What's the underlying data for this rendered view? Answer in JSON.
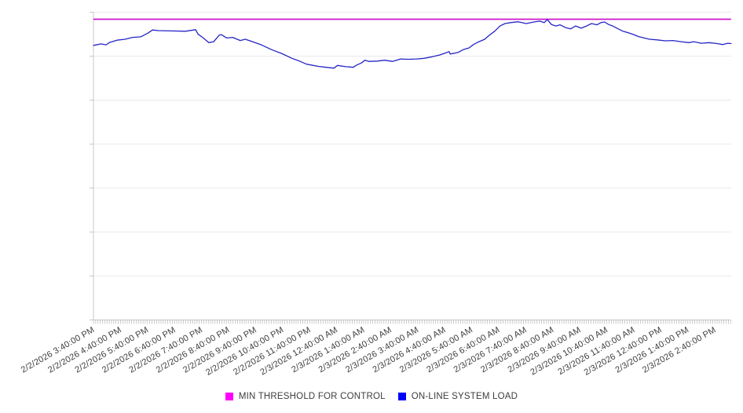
{
  "chart_data": {
    "type": "line",
    "title": "",
    "x_axis": {
      "tick_labels": [
        "2/2/2026 3:40:00 PM",
        "2/2/2026 4:40:00 PM",
        "2/2/2026 5:40:00 PM",
        "2/2/2026 6:40:00 PM",
        "2/2/2026 7:40:00 PM",
        "2/2/2026 8:40:00 PM",
        "2/2/2026 9:40:00 PM",
        "2/2/2026 10:40:00 PM",
        "2/2/2026 11:40:00 PM",
        "2/3/2026 12:40:00 AM",
        "2/3/2026 1:40:00 AM",
        "2/3/2026 2:40:00 AM",
        "2/3/2026 3:40:00 AM",
        "2/3/2026 4:40:00 AM",
        "2/3/2026 5:40:00 AM",
        "2/3/2026 6:40:00 AM",
        "2/3/2026 7:40:00 AM",
        "2/3/2026 8:40:00 AM",
        "2/3/2026 9:40:00 AM",
        "2/3/2026 10:40:00 AM",
        "2/3/2026 11:40:00 AM",
        "2/3/2026 12:40:00 PM",
        "2/3/2026 1:40:00 PM",
        "2/3/2026 2:40:00 PM"
      ],
      "label_interval_minutes": 60,
      "minor_ticks_per_hour": 12,
      "range_minutes": [
        0,
        1416
      ]
    },
    "y_axis": {
      "tick_labels": [],
      "normalized_range": [
        0,
        100
      ],
      "gridlines": 7,
      "note": "y axis rendered without tick labels; series values normalized 0-100 of plot height"
    },
    "legend_position": "bottom-center",
    "colors": {
      "gridline": "#EAEAEA",
      "axis": "#C8C8C8",
      "minor_tick": "#ABABAB",
      "label_text": "#3D3D3D",
      "background": "#FFFFFF"
    },
    "series": [
      {
        "name": "MIN THRESHOLD FOR CONTROL",
        "role": "threshold",
        "legend_color": "#FF00FF",
        "line_color": "#CC16CC",
        "value": 97.7
      },
      {
        "name": "ON-LINE SYSTEM LOAD",
        "role": "data",
        "legend_color": "#0000FF",
        "line_color": "#2525C4",
        "points": [
          [
            0,
            89.2
          ],
          [
            17,
            89.7
          ],
          [
            28,
            89.4
          ],
          [
            35,
            90.1
          ],
          [
            52,
            90.9
          ],
          [
            70,
            91.2
          ],
          [
            87,
            91.8
          ],
          [
            105,
            92.0
          ],
          [
            122,
            93.3
          ],
          [
            131,
            94.2
          ],
          [
            145,
            94.0
          ],
          [
            174,
            93.9
          ],
          [
            204,
            93.8
          ],
          [
            227,
            94.3
          ],
          [
            232,
            92.9
          ],
          [
            244,
            91.6
          ],
          [
            256,
            90.1
          ],
          [
            267,
            90.4
          ],
          [
            279,
            92.5
          ],
          [
            284,
            92.7
          ],
          [
            296,
            91.6
          ],
          [
            309,
            91.8
          ],
          [
            326,
            90.8
          ],
          [
            337,
            91.2
          ],
          [
            349,
            90.6
          ],
          [
            371,
            89.5
          ],
          [
            396,
            87.8
          ],
          [
            419,
            86.5
          ],
          [
            441,
            85.0
          ],
          [
            459,
            84.0
          ],
          [
            473,
            83.1
          ],
          [
            499,
            82.4
          ],
          [
            516,
            82.1
          ],
          [
            534,
            81.8
          ],
          [
            542,
            82.7
          ],
          [
            560,
            82.3
          ],
          [
            577,
            82.1
          ],
          [
            583,
            82.7
          ],
          [
            595,
            83.5
          ],
          [
            603,
            84.4
          ],
          [
            612,
            84.0
          ],
          [
            630,
            84.1
          ],
          [
            647,
            84.4
          ],
          [
            664,
            84.0
          ],
          [
            682,
            84.8
          ],
          [
            699,
            84.7
          ],
          [
            717,
            84.8
          ],
          [
            734,
            85.0
          ],
          [
            752,
            85.5
          ],
          [
            769,
            86.1
          ],
          [
            781,
            86.7
          ],
          [
            790,
            87.2
          ],
          [
            792,
            86.4
          ],
          [
            809,
            86.9
          ],
          [
            821,
            87.8
          ],
          [
            834,
            88.4
          ],
          [
            844,
            89.5
          ],
          [
            856,
            90.4
          ],
          [
            869,
            91.2
          ],
          [
            879,
            92.5
          ],
          [
            891,
            93.8
          ],
          [
            903,
            95.5
          ],
          [
            914,
            96.3
          ],
          [
            926,
            96.6
          ],
          [
            943,
            96.9
          ],
          [
            961,
            96.3
          ],
          [
            978,
            96.8
          ],
          [
            991,
            97.1
          ],
          [
            1001,
            96.6
          ],
          [
            1008,
            97.6
          ],
          [
            1017,
            96.0
          ],
          [
            1027,
            95.5
          ],
          [
            1036,
            95.9
          ],
          [
            1048,
            95.0
          ],
          [
            1060,
            94.6
          ],
          [
            1071,
            95.5
          ],
          [
            1083,
            94.8
          ],
          [
            1095,
            95.5
          ],
          [
            1106,
            96.3
          ],
          [
            1118,
            95.9
          ],
          [
            1127,
            96.6
          ],
          [
            1135,
            96.8
          ],
          [
            1144,
            96.0
          ],
          [
            1153,
            95.5
          ],
          [
            1165,
            94.6
          ],
          [
            1176,
            93.8
          ],
          [
            1188,
            93.3
          ],
          [
            1200,
            92.7
          ],
          [
            1210,
            92.1
          ],
          [
            1223,
            91.6
          ],
          [
            1235,
            91.2
          ],
          [
            1252,
            91.0
          ],
          [
            1270,
            90.7
          ],
          [
            1287,
            90.8
          ],
          [
            1305,
            90.4
          ],
          [
            1322,
            90.1
          ],
          [
            1333,
            90.4
          ],
          [
            1350,
            89.9
          ],
          [
            1367,
            90.1
          ],
          [
            1385,
            89.8
          ],
          [
            1397,
            89.5
          ],
          [
            1409,
            89.9
          ],
          [
            1416,
            89.8
          ]
        ]
      }
    ]
  }
}
